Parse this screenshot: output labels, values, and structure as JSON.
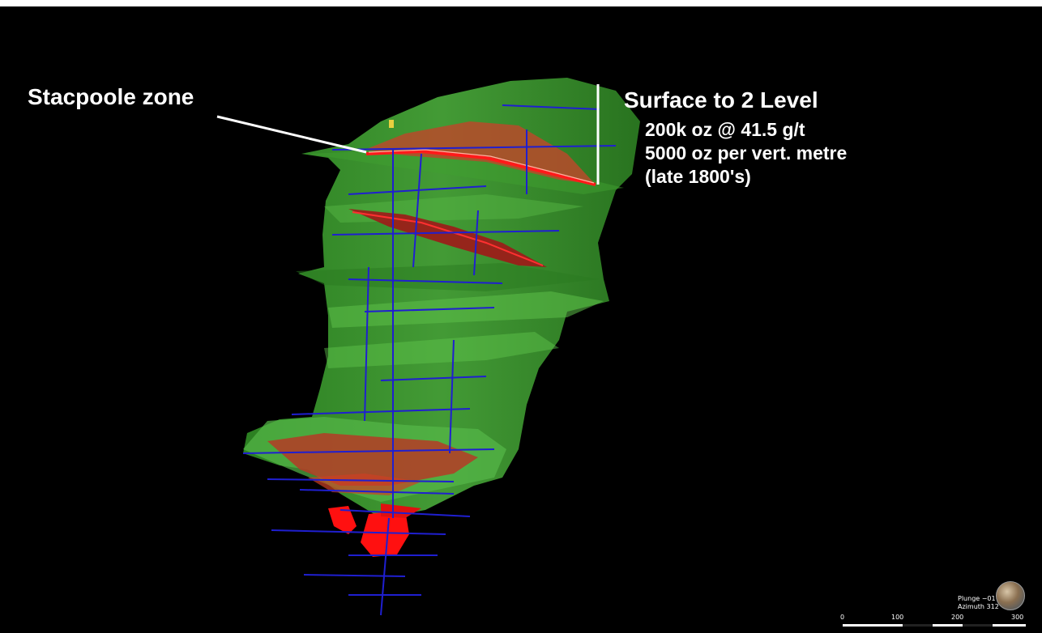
{
  "annotations": {
    "stacpoole_label": "Stacpoole zone",
    "surface_label": "Surface to 2 Level",
    "stats": [
      "200k oz @ 41.5 g/t",
      "5000 oz per vert. metre",
      "(late 1800's)"
    ]
  },
  "orientation": {
    "plunge": "Plunge −01",
    "azimuth": "Azimuth 312"
  },
  "scale_bar": {
    "ticks": [
      "0",
      "100",
      "200",
      "300"
    ]
  },
  "colors": {
    "background": "#000000",
    "orebody_green": "#3a9a2c",
    "stope_red": "#e01010",
    "development_blue": "#1f1fd0",
    "annotation_white": "#ffffff"
  }
}
